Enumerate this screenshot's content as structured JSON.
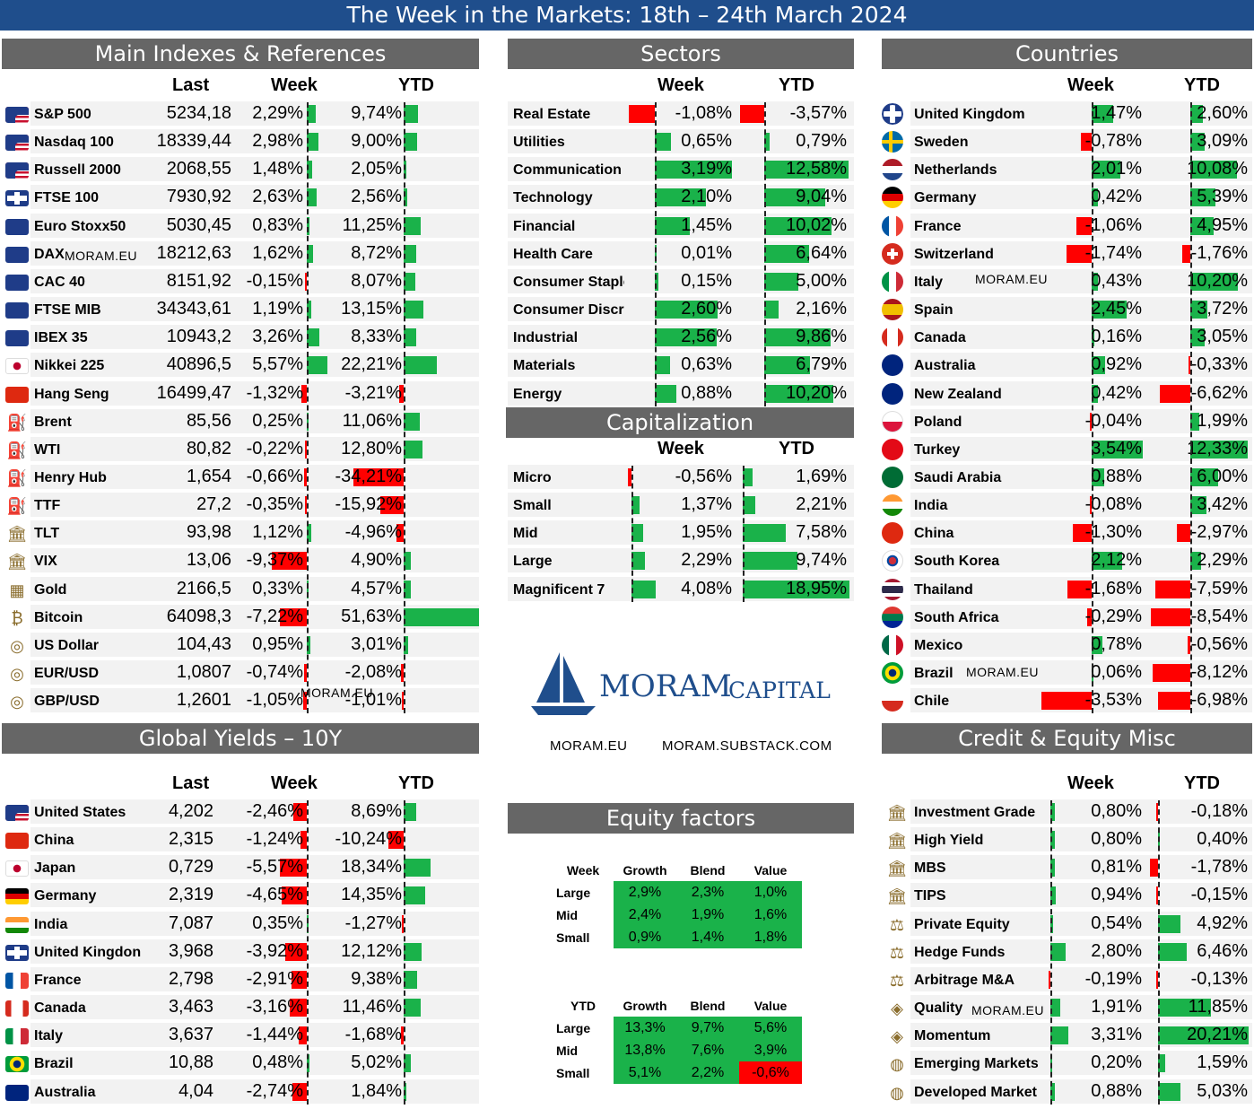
{
  "title": "The Week in the Markets: 18th – 24th March 2024",
  "watermark": "MORAM.EU",
  "main": {
    "title": "Main Indexes & References",
    "h_last": "Last",
    "h_week": "Week",
    "h_ytd": "YTD",
    "rows": [
      {
        "name": "S&P 500",
        "icon": "us-flag",
        "last": "5234,18",
        "week": "2,29%",
        "ytd": "9,74%",
        "w": 2.29,
        "y": 9.74
      },
      {
        "name": "Nasdaq 100",
        "icon": "us-flag",
        "last": "18339,44",
        "week": "2,98%",
        "ytd": "9,00%",
        "w": 2.98,
        "y": 9.0
      },
      {
        "name": "Russell 2000",
        "icon": "us-flag",
        "last": "2068,55",
        "week": "1,48%",
        "ytd": "2,05%",
        "w": 1.48,
        "y": 2.05
      },
      {
        "name": "FTSE 100",
        "icon": "uk-flag",
        "last": "7930,92",
        "week": "2,63%",
        "ytd": "2,56%",
        "w": 2.63,
        "y": 2.56
      },
      {
        "name": "Euro Stoxx50",
        "icon": "eu-flag",
        "last": "5030,45",
        "week": "0,83%",
        "ytd": "11,25%",
        "w": 0.83,
        "y": 11.25
      },
      {
        "name": "DAX",
        "icon": "eu-flag",
        "last": "18212,63",
        "week": "1,62%",
        "ytd": "8,72%",
        "w": 1.62,
        "y": 8.72
      },
      {
        "name": "CAC 40",
        "icon": "eu-flag",
        "last": "8151,92",
        "week": "-0,15%",
        "ytd": "8,07%",
        "w": -0.15,
        "y": 8.07
      },
      {
        "name": "FTSE MIB",
        "icon": "eu-flag",
        "last": "34343,61",
        "week": "1,19%",
        "ytd": "13,15%",
        "w": 1.19,
        "y": 13.15
      },
      {
        "name": "IBEX 35",
        "icon": "eu-flag",
        "last": "10943,2",
        "week": "3,26%",
        "ytd": "8,33%",
        "w": 3.26,
        "y": 8.33
      },
      {
        "name": "Nikkei 225",
        "icon": "jp-flag",
        "last": "40896,5",
        "week": "5,57%",
        "ytd": "22,21%",
        "w": 5.57,
        "y": 22.21
      },
      {
        "name": "Hang Seng",
        "icon": "cn-flag",
        "last": "16499,47",
        "week": "-1,32%",
        "ytd": "-3,21%",
        "w": -1.32,
        "y": -3.21
      },
      {
        "name": "Brent",
        "icon": "oil-rig-icon",
        "last": "85,56",
        "week": "0,25%",
        "ytd": "11,06%",
        "w": 0.25,
        "y": 11.06
      },
      {
        "name": "WTI",
        "icon": "oil-rig-icon",
        "last": "80,82",
        "week": "-0,22%",
        "ytd": "12,80%",
        "w": -0.22,
        "y": 12.8
      },
      {
        "name": "Henry Hub",
        "icon": "oil-rig-icon",
        "last": "1,654",
        "week": "-0,66%",
        "ytd": "-34,21%",
        "w": -0.66,
        "y": -34.21
      },
      {
        "name": "TTF",
        "icon": "oil-rig-icon",
        "last": "27,2",
        "week": "-0,35%",
        "ytd": "-15,92%",
        "w": -0.35,
        "y": -15.92
      },
      {
        "name": "TLT",
        "icon": "bank-icon",
        "last": "93,98",
        "week": "1,12%",
        "ytd": "-4,96%",
        "w": 1.12,
        "y": -4.96
      },
      {
        "name": "VIX",
        "icon": "bank-icon",
        "last": "13,06",
        "week": "-9,37%",
        "ytd": "4,90%",
        "w": -9.37,
        "y": 4.9
      },
      {
        "name": "Gold",
        "icon": "gold-icon",
        "last": "2166,5",
        "week": "0,33%",
        "ytd": "4,57%",
        "w": 0.33,
        "y": 4.57
      },
      {
        "name": "Bitcoin",
        "icon": "bitcoin-icon",
        "last": "64098,3",
        "week": "-7,22%",
        "ytd": "51,63%",
        "w": -7.22,
        "y": 51.63
      },
      {
        "name": "US Dollar",
        "icon": "coins-icon",
        "last": "104,43",
        "week": "0,95%",
        "ytd": "3,01%",
        "w": 0.95,
        "y": 3.01
      },
      {
        "name": "EUR/USD",
        "icon": "coins-icon",
        "last": "1,0807",
        "week": "-0,74%",
        "ytd": "-2,08%",
        "w": -0.74,
        "y": -2.08
      },
      {
        "name": "GBP/USD",
        "icon": "coins-icon",
        "last": "1,2601",
        "week": "-1,05%",
        "ytd": "-1,01%",
        "w": -1.05,
        "y": -1.01
      }
    ]
  },
  "sectors": {
    "title": "Sectors",
    "h_week": "Week",
    "h_ytd": "YTD",
    "rows": [
      {
        "name": "Real Estate",
        "week": "-1,08%",
        "ytd": "-3,57%",
        "w": -1.08,
        "y": -3.57
      },
      {
        "name": "Utilities",
        "week": "0,65%",
        "ytd": "0,79%",
        "w": 0.65,
        "y": 0.79
      },
      {
        "name": "Communication",
        "week": "3,19%",
        "ytd": "12,58%",
        "w": 3.19,
        "y": 12.58
      },
      {
        "name": "Technology",
        "week": "2,10%",
        "ytd": "9,04%",
        "w": 2.1,
        "y": 9.04
      },
      {
        "name": "Financial",
        "week": "1,45%",
        "ytd": "10,02%",
        "w": 1.45,
        "y": 10.02
      },
      {
        "name": "Health Care",
        "week": "0,01%",
        "ytd": "6,64%",
        "w": 0.01,
        "y": 6.64
      },
      {
        "name": "Consumer Staple",
        "week": "0,15%",
        "ytd": "5,00%",
        "w": 0.15,
        "y": 5.0
      },
      {
        "name": "Consumer Discre",
        "week": "2,60%",
        "ytd": "2,16%",
        "w": 2.6,
        "y": 2.16
      },
      {
        "name": "Industrial",
        "week": "2,56%",
        "ytd": "9,86%",
        "w": 2.56,
        "y": 9.86
      },
      {
        "name": "Materials",
        "week": "0,63%",
        "ytd": "6,79%",
        "w": 0.63,
        "y": 6.79
      },
      {
        "name": "Energy",
        "week": "0,88%",
        "ytd": "10,20%",
        "w": 0.88,
        "y": 10.2
      }
    ]
  },
  "cap": {
    "title": "Capitalization",
    "h_week": "Week",
    "h_ytd": "YTD",
    "rows": [
      {
        "name": "Micro",
        "week": "-0,56%",
        "ytd": "1,69%",
        "w": -0.56,
        "y": 1.69
      },
      {
        "name": "Small",
        "week": "1,37%",
        "ytd": "2,21%",
        "w": 1.37,
        "y": 2.21
      },
      {
        "name": "Mid",
        "week": "1,95%",
        "ytd": "7,58%",
        "w": 1.95,
        "y": 7.58
      },
      {
        "name": "Large",
        "week": "2,29%",
        "ytd": "9,74%",
        "w": 2.29,
        "y": 9.74
      },
      {
        "name": "Magnificent 7",
        "week": "4,08%",
        "ytd": "18,95%",
        "w": 4.08,
        "y": 18.95
      }
    ]
  },
  "countries": {
    "title": "Countries",
    "h_week": "Week",
    "h_ytd": "YTD",
    "rows": [
      {
        "name": "United Kingdom",
        "icon": "uk-flag",
        "week": "1,47%",
        "ytd": "2,60%",
        "w": 1.47,
        "y": 2.6
      },
      {
        "name": "Sweden",
        "icon": "se-flag",
        "week": "-0,78%",
        "ytd": "3,09%",
        "w": -0.78,
        "y": 3.09
      },
      {
        "name": "Netherlands",
        "icon": "nl-flag",
        "week": "2,01%",
        "ytd": "10,08%",
        "w": 2.01,
        "y": 10.08
      },
      {
        "name": "Germany",
        "icon": "de-flag",
        "week": "0,42%",
        "ytd": "5,39%",
        "w": 0.42,
        "y": 5.39
      },
      {
        "name": "France",
        "icon": "fr-flag",
        "week": "-1,06%",
        "ytd": "4,95%",
        "w": -1.06,
        "y": 4.95
      },
      {
        "name": "Switzerland",
        "icon": "ch-flag",
        "week": "-1,74%",
        "ytd": "-1,76%",
        "w": -1.74,
        "y": -1.76
      },
      {
        "name": "Italy",
        "icon": "it-flag",
        "week": "0,43%",
        "ytd": "10,20%",
        "w": 0.43,
        "y": 10.2
      },
      {
        "name": "Spain",
        "icon": "es-flag",
        "week": "2,45%",
        "ytd": "3,72%",
        "w": 2.45,
        "y": 3.72
      },
      {
        "name": "Canada",
        "icon": "ca-flag",
        "week": "0,16%",
        "ytd": "3,05%",
        "w": 0.16,
        "y": 3.05
      },
      {
        "name": "Australia",
        "icon": "au-flag",
        "week": "0,92%",
        "ytd": "-0,33%",
        "w": 0.92,
        "y": -0.33
      },
      {
        "name": "New Zealand",
        "icon": "nz-flag",
        "week": "0,42%",
        "ytd": "-6,62%",
        "w": 0.42,
        "y": -6.62
      },
      {
        "name": "Poland",
        "icon": "pl-flag",
        "week": "-0,04%",
        "ytd": "1,99%",
        "w": -0.04,
        "y": 1.99
      },
      {
        "name": "Turkey",
        "icon": "tr-flag",
        "week": "3,54%",
        "ytd": "12,33%",
        "w": 3.54,
        "y": 12.33
      },
      {
        "name": "Saudi Arabia",
        "icon": "sa-flag",
        "week": "0,88%",
        "ytd": "6,00%",
        "w": 0.88,
        "y": 6.0
      },
      {
        "name": "India",
        "icon": "in-flag",
        "week": "-0,08%",
        "ytd": "3,42%",
        "w": -0.08,
        "y": 3.42
      },
      {
        "name": "China",
        "icon": "cn-flag",
        "week": "-1,30%",
        "ytd": "-2,97%",
        "w": -1.3,
        "y": -2.97
      },
      {
        "name": "South Korea",
        "icon": "kr-flag",
        "week": "2,12%",
        "ytd": "2,29%",
        "w": 2.12,
        "y": 2.29
      },
      {
        "name": "Thailand",
        "icon": "th-flag",
        "week": "-1,68%",
        "ytd": "-7,59%",
        "w": -1.68,
        "y": -7.59
      },
      {
        "name": "South Africa",
        "icon": "za-flag",
        "week": "-0,29%",
        "ytd": "-8,54%",
        "w": -0.29,
        "y": -8.54
      },
      {
        "name": "Mexico",
        "icon": "mx-flag",
        "week": "0,78%",
        "ytd": "-0,56%",
        "w": 0.78,
        "y": -0.56
      },
      {
        "name": "Brazil",
        "icon": "br-flag",
        "week": "0,06%",
        "ytd": "-8,12%",
        "w": 0.06,
        "y": -8.12
      },
      {
        "name": "Chile",
        "icon": "cl-flag",
        "week": "-3,53%",
        "ytd": "-6,98%",
        "w": -3.53,
        "y": -6.98
      }
    ]
  },
  "yields": {
    "title": "Global Yields – 10Y",
    "h_last": "Last",
    "h_week": "Week",
    "h_ytd": "YTD",
    "rows": [
      {
        "name": "United States",
        "icon": "us-flag",
        "last": "4,202",
        "week": "-2,46%",
        "ytd": "8,69%",
        "w": -2.46,
        "y": 8.69
      },
      {
        "name": "China",
        "icon": "cn-flag",
        "last": "2,315",
        "week": "-1,24%",
        "ytd": "-10,24%",
        "w": -1.24,
        "y": -10.24
      },
      {
        "name": "Japan",
        "icon": "jp-flag",
        "last": "0,729",
        "week": "-5,57%",
        "ytd": "18,34%",
        "w": -5.57,
        "y": 18.34
      },
      {
        "name": "Germany",
        "icon": "de-flag",
        "last": "2,319",
        "week": "-4,65%",
        "ytd": "14,35%",
        "w": -4.65,
        "y": 14.35
      },
      {
        "name": "India",
        "icon": "in-flag",
        "last": "7,087",
        "week": "0,35%",
        "ytd": "-1,27%",
        "w": 0.35,
        "y": -1.27
      },
      {
        "name": "United Kingdon",
        "icon": "uk-flag",
        "last": "3,968",
        "week": "-3,92%",
        "ytd": "12,12%",
        "w": -3.92,
        "y": 12.12
      },
      {
        "name": "France",
        "icon": "fr-flag",
        "last": "2,798",
        "week": "-2,91%",
        "ytd": "9,38%",
        "w": -2.91,
        "y": 9.38
      },
      {
        "name": "Canada",
        "icon": "ca-flag",
        "last": "3,463",
        "week": "-3,16%",
        "ytd": "11,46%",
        "w": -3.16,
        "y": 11.46
      },
      {
        "name": "Italy",
        "icon": "it-flag",
        "last": "3,637",
        "week": "-1,44%",
        "ytd": "-1,68%",
        "w": -1.44,
        "y": -1.68
      },
      {
        "name": "Brazil",
        "icon": "br-flag",
        "last": "10,88",
        "week": "0,48%",
        "ytd": "5,02%",
        "w": 0.48,
        "y": 5.02
      },
      {
        "name": "Australia",
        "icon": "au-flag",
        "last": "4,04",
        "week": "-2,74%",
        "ytd": "1,84%",
        "w": -2.74,
        "y": 1.84
      }
    ]
  },
  "credit": {
    "title": "Credit & Equity Misc",
    "h_week": "Week",
    "h_ytd": "YTD",
    "rows": [
      {
        "name": "Investment Grade",
        "icon": "bank-icon",
        "week": "0,80%",
        "ytd": "-0,18%",
        "w": 0.8,
        "y": -0.18
      },
      {
        "name": "High Yield",
        "icon": "bank-icon",
        "week": "0,80%",
        "ytd": "0,40%",
        "w": 0.8,
        "y": 0.4
      },
      {
        "name": "MBS",
        "icon": "bank-icon",
        "week": "0,81%",
        "ytd": "-1,78%",
        "w": 0.81,
        "y": -1.78
      },
      {
        "name": "TIPS",
        "icon": "bank-icon",
        "week": "0,94%",
        "ytd": "-0,15%",
        "w": 0.94,
        "y": -0.15
      },
      {
        "name": "Private Equity",
        "icon": "scale-icon",
        "week": "0,54%",
        "ytd": "4,92%",
        "w": 0.54,
        "y": 4.92
      },
      {
        "name": "Hedge Funds",
        "icon": "scale-icon",
        "week": "2,80%",
        "ytd": "6,46%",
        "w": 2.8,
        "y": 6.46
      },
      {
        "name": "Arbitrage M&A",
        "icon": "scale-icon",
        "week": "-0,19%",
        "ytd": "-0,13%",
        "w": -0.19,
        "y": -0.13
      },
      {
        "name": "Quality",
        "icon": "diamond-icon",
        "week": "1,91%",
        "ytd": "11,85%",
        "w": 1.91,
        "y": 11.85
      },
      {
        "name": "Momentum",
        "icon": "diamond-icon",
        "week": "3,31%",
        "ytd": "20,21%",
        "w": 3.31,
        "y": 20.21
      },
      {
        "name": "Emerging Markets",
        "icon": "globe-icon",
        "week": "0,20%",
        "ytd": "1,59%",
        "w": 0.2,
        "y": 1.59
      },
      {
        "name": "Developed Market",
        "icon": "globe-icon",
        "week": "0,88%",
        "ytd": "5,03%",
        "w": 0.88,
        "y": 5.03
      }
    ]
  },
  "factors": {
    "title": "Equity factors",
    "week": {
      "label": "Week",
      "cols": [
        "Growth",
        "Blend",
        "Value"
      ],
      "rows": [
        {
          "label": "Large",
          "vals": [
            "2,9%",
            "2,3%",
            "1,0%"
          ]
        },
        {
          "label": "Mid",
          "vals": [
            "2,4%",
            "1,9%",
            "1,6%"
          ]
        },
        {
          "label": "Small",
          "vals": [
            "0,9%",
            "1,4%",
            "1,8%"
          ]
        }
      ]
    },
    "ytd": {
      "label": "YTD",
      "cols": [
        "Growth",
        "Blend",
        "Value"
      ],
      "rows": [
        {
          "label": "Large",
          "vals": [
            "13,3%",
            "9,7%",
            "5,6%"
          ]
        },
        {
          "label": "Mid",
          "vals": [
            "13,8%",
            "7,6%",
            "3,9%"
          ]
        },
        {
          "label": "Small",
          "vals": [
            "5,1%",
            "2,2%",
            "-0,6%"
          ]
        }
      ]
    }
  },
  "logo": {
    "brand": "MORAM",
    "brand2": "CAPITAL",
    "link1": "MORAM.EU",
    "link2": "MORAM.SUBSTACK.COM"
  },
  "colors": {
    "header": "#1f4e8c",
    "section": "#666666",
    "positive": "#1ab24a",
    "negative": "#ff0000"
  }
}
